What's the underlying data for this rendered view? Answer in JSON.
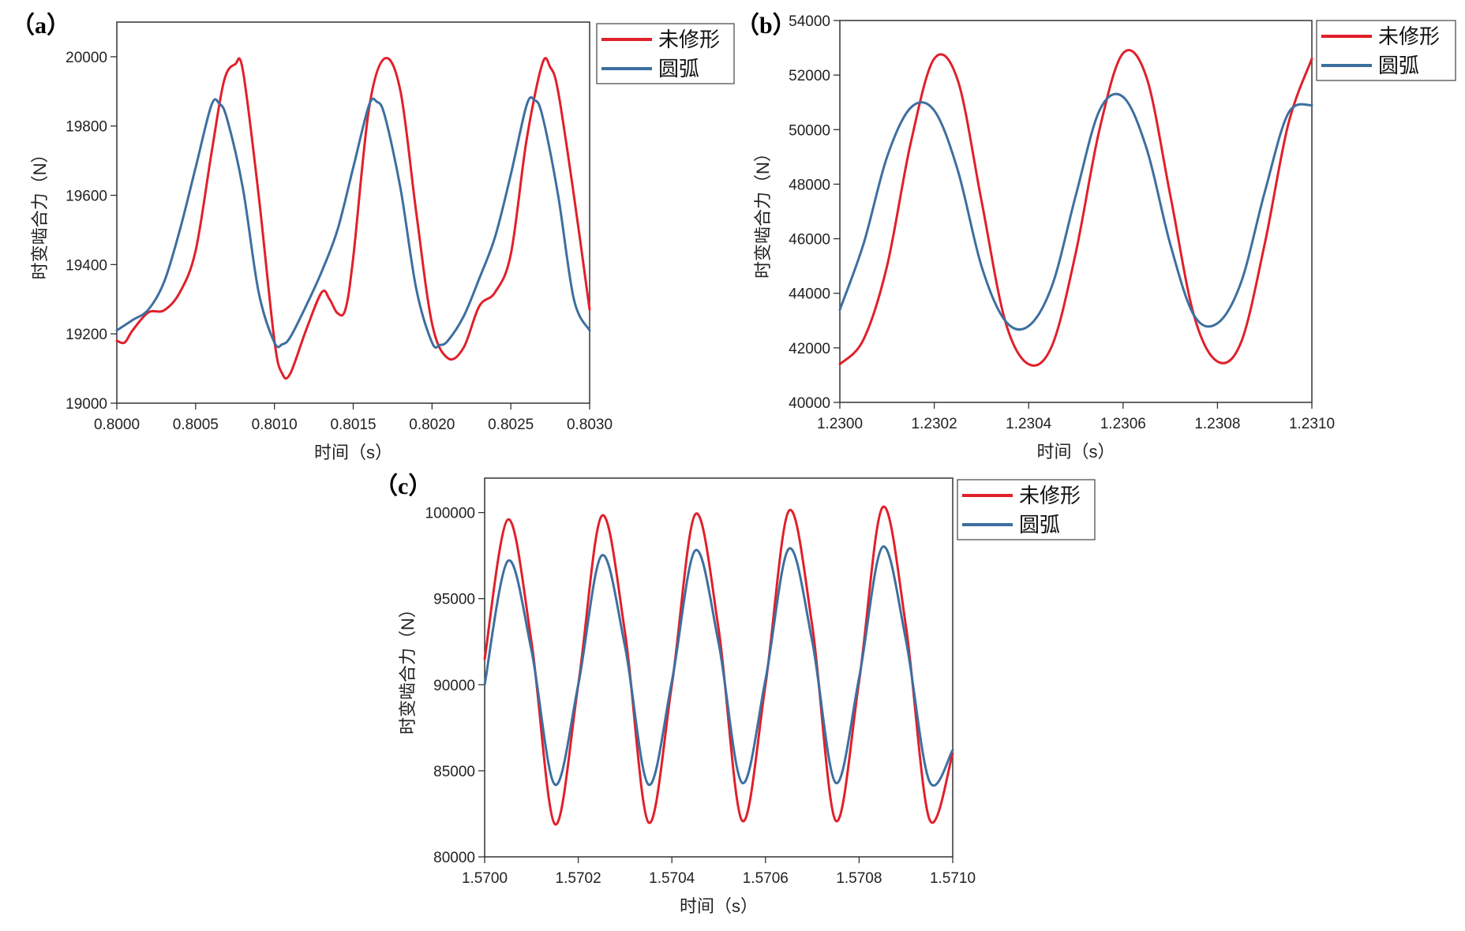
{
  "chart_data": [
    {
      "type": "line",
      "panel_label": "（a）",
      "xlabel": "时间（s）",
      "ylabel": "时变啮合力（N）",
      "xlim": [
        0.8,
        0.803
      ],
      "ylim": [
        19000,
        20100
      ],
      "xticks": [
        "0.8000",
        "0.8005",
        "0.8010",
        "0.8015",
        "0.8020",
        "0.8025",
        "0.8030"
      ],
      "xtick_values": [
        0.8,
        0.8005,
        0.801,
        0.8015,
        0.802,
        0.8025,
        0.803
      ],
      "yticks": [
        "19000",
        "19200",
        "19400",
        "19600",
        "19800",
        "20000"
      ],
      "ytick_values": [
        19000,
        19200,
        19400,
        19600,
        19800,
        20000
      ],
      "grid": false,
      "legend_position": "outside-top-right",
      "series": [
        {
          "name": "未修形",
          "color": "#e0202a",
          "points": [
            [
              0.8,
              19180
            ],
            [
              0.80005,
              19175
            ],
            [
              0.8001,
              19210
            ],
            [
              0.8002,
              19262
            ],
            [
              0.8003,
              19268
            ],
            [
              0.8004,
              19320
            ],
            [
              0.8005,
              19440
            ],
            [
              0.8006,
              19720
            ],
            [
              0.80068,
              19930
            ],
            [
              0.80075,
              19978
            ],
            [
              0.8008,
              19960
            ],
            [
              0.8009,
              19600
            ],
            [
              0.801,
              19180
            ],
            [
              0.80105,
              19085
            ],
            [
              0.8011,
              19085
            ],
            [
              0.8012,
              19210
            ],
            [
              0.8013,
              19320
            ],
            [
              0.80135,
              19300
            ],
            [
              0.8014,
              19260
            ],
            [
              0.80145,
              19270
            ],
            [
              0.8015,
              19420
            ],
            [
              0.8016,
              19850
            ],
            [
              0.8017,
              19995
            ],
            [
              0.8018,
              19900
            ],
            [
              0.8019,
              19550
            ],
            [
              0.802,
              19230
            ],
            [
              0.8021,
              19130
            ],
            [
              0.8022,
              19160
            ],
            [
              0.8023,
              19280
            ],
            [
              0.8024,
              19320
            ],
            [
              0.8025,
              19430
            ],
            [
              0.8026,
              19760
            ],
            [
              0.8027,
              19980
            ],
            [
              0.80275,
              19970
            ],
            [
              0.8028,
              19900
            ],
            [
              0.8029,
              19600
            ],
            [
              0.803,
              19270
            ]
          ]
        },
        {
          "name": "圆弧",
          "color": "#3d6fa0",
          "points": [
            [
              0.8,
              19210
            ],
            [
              0.8001,
              19240
            ],
            [
              0.8002,
              19270
            ],
            [
              0.8003,
              19350
            ],
            [
              0.8004,
              19500
            ],
            [
              0.8005,
              19680
            ],
            [
              0.8006,
              19860
            ],
            [
              0.80065,
              19865
            ],
            [
              0.8007,
              19820
            ],
            [
              0.8008,
              19620
            ],
            [
              0.8009,
              19320
            ],
            [
              0.801,
              19175
            ],
            [
              0.80105,
              19170
            ],
            [
              0.8011,
              19190
            ],
            [
              0.8012,
              19280
            ],
            [
              0.8013,
              19380
            ],
            [
              0.8014,
              19500
            ],
            [
              0.8015,
              19680
            ],
            [
              0.8016,
              19860
            ],
            [
              0.80165,
              19870
            ],
            [
              0.8017,
              19830
            ],
            [
              0.8018,
              19620
            ],
            [
              0.8019,
              19330
            ],
            [
              0.802,
              19175
            ],
            [
              0.80205,
              19168
            ],
            [
              0.8021,
              19180
            ],
            [
              0.8022,
              19250
            ],
            [
              0.8023,
              19360
            ],
            [
              0.8024,
              19480
            ],
            [
              0.8025,
              19660
            ],
            [
              0.8026,
              19860
            ],
            [
              0.80265,
              19875
            ],
            [
              0.8027,
              19830
            ],
            [
              0.8028,
              19600
            ],
            [
              0.8029,
              19300
            ],
            [
              0.803,
              19210
            ]
          ]
        }
      ]
    },
    {
      "type": "line",
      "panel_label": "（b）",
      "xlabel": "时间（s）",
      "ylabel": "时变啮合力（N）",
      "xlim": [
        1.23,
        1.231
      ],
      "ylim": [
        40000,
        54000
      ],
      "xticks": [
        "1.2300",
        "1.2302",
        "1.2304",
        "1.2306",
        "1.2308",
        "1.2310"
      ],
      "xtick_values": [
        1.23,
        1.2302,
        1.2304,
        1.2306,
        1.2308,
        1.231
      ],
      "yticks": [
        "40000",
        "42000",
        "44000",
        "46000",
        "48000",
        "50000",
        "52000",
        "54000"
      ],
      "ytick_values": [
        40000,
        42000,
        44000,
        46000,
        48000,
        50000,
        52000,
        54000
      ],
      "grid": false,
      "legend_position": "outside-top-right",
      "series": [
        {
          "name": "未修形",
          "color": "#e0202a",
          "points": [
            [
              1.23,
              41400
            ],
            [
              1.23005,
              42300
            ],
            [
              1.2301,
              45000
            ],
            [
              1.23015,
              49500
            ],
            [
              1.2302,
              52600
            ],
            [
              1.23025,
              51800
            ],
            [
              1.2303,
              47400
            ],
            [
              1.23035,
              43000
            ],
            [
              1.2304,
              41400
            ],
            [
              1.23045,
              42100
            ],
            [
              1.2305,
              45500
            ],
            [
              1.23055,
              50000
            ],
            [
              1.2306,
              52800
            ],
            [
              1.23065,
              51900
            ],
            [
              1.2307,
              47600
            ],
            [
              1.23075,
              43200
            ],
            [
              1.2308,
              41500
            ],
            [
              1.23085,
              42200
            ],
            [
              1.2309,
              45800
            ],
            [
              1.23095,
              50200
            ],
            [
              1.231,
              52600
            ]
          ]
        },
        {
          "name": "圆弧",
          "color": "#3d6fa0",
          "points": [
            [
              1.23,
              43400
            ],
            [
              1.23005,
              45800
            ],
            [
              1.2301,
              49000
            ],
            [
              1.23015,
              50800
            ],
            [
              1.2302,
              50700
            ],
            [
              1.23025,
              48500
            ],
            [
              1.2303,
              45000
            ],
            [
              1.23035,
              43000
            ],
            [
              1.2304,
              42800
            ],
            [
              1.23045,
              44300
            ],
            [
              1.2305,
              47600
            ],
            [
              1.23055,
              50700
            ],
            [
              1.2306,
              51200
            ],
            [
              1.23065,
              49300
            ],
            [
              1.2307,
              45800
            ],
            [
              1.23075,
              43200
            ],
            [
              1.2308,
              42900
            ],
            [
              1.23085,
              44400
            ],
            [
              1.2309,
              47700
            ],
            [
              1.23095,
              50600
            ],
            [
              1.231,
              50900
            ]
          ]
        }
      ]
    },
    {
      "type": "line",
      "panel_label": "（c）",
      "xlabel": "时间（s）",
      "ylabel": "时变啮合力（N）",
      "xlim": [
        1.57,
        1.571
      ],
      "ylim": [
        80000,
        102000
      ],
      "xticks": [
        "1.5700",
        "1.5702",
        "1.5704",
        "1.5706",
        "1.5708",
        "1.5710"
      ],
      "xtick_values": [
        1.57,
        1.5702,
        1.5704,
        1.5706,
        1.5708,
        1.571
      ],
      "yticks": [
        "80000",
        "85000",
        "90000",
        "95000",
        "100000"
      ],
      "ytick_values": [
        80000,
        85000,
        90000,
        95000,
        100000
      ],
      "grid": false,
      "legend_position": "outside-top-right",
      "series": [
        {
          "name": "未修形",
          "color": "#e0202a",
          "points": [
            [
              1.57,
              91500
            ],
            [
              1.57005,
              99600
            ],
            [
              1.5701,
              92500
            ],
            [
              1.57015,
              81900
            ],
            [
              1.5702,
              90000
            ],
            [
              1.57025,
              99800
            ],
            [
              1.5703,
              93000
            ],
            [
              1.57035,
              82000
            ],
            [
              1.5704,
              90000
            ],
            [
              1.57045,
              99900
            ],
            [
              1.5705,
              93200
            ],
            [
              1.57055,
              82100
            ],
            [
              1.5706,
              90000
            ],
            [
              1.57065,
              100100
            ],
            [
              1.5707,
              93400
            ],
            [
              1.57075,
              82100
            ],
            [
              1.5708,
              90200
            ],
            [
              1.57085,
              100300
            ],
            [
              1.5709,
              93400
            ],
            [
              1.57095,
              82200
            ],
            [
              1.571,
              86000
            ]
          ]
        },
        {
          "name": "圆弧",
          "color": "#3d6fa0",
          "points": [
            [
              1.57,
              90000
            ],
            [
              1.57005,
              97200
            ],
            [
              1.5701,
              92000
            ],
            [
              1.57015,
              84200
            ],
            [
              1.5702,
              90000
            ],
            [
              1.57025,
              97500
            ],
            [
              1.5703,
              92200
            ],
            [
              1.57035,
              84200
            ],
            [
              1.5704,
              90200
            ],
            [
              1.57045,
              97800
            ],
            [
              1.5705,
              92400
            ],
            [
              1.57055,
              84300
            ],
            [
              1.5706,
              90300
            ],
            [
              1.57065,
              97900
            ],
            [
              1.5707,
              92500
            ],
            [
              1.57075,
              84300
            ],
            [
              1.5708,
              90400
            ],
            [
              1.57085,
              98000
            ],
            [
              1.5709,
              92600
            ],
            [
              1.57095,
              84400
            ],
            [
              1.571,
              86200
            ]
          ]
        }
      ]
    }
  ]
}
